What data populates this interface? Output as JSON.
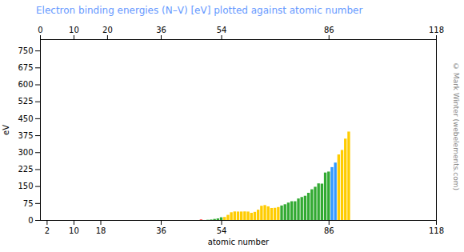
{
  "chart_data": {
    "type": "bar",
    "title": "Electron binding energies (N–V) [eV] plotted against atomic number",
    "xlabel": "atomic number",
    "ylabel": "eV",
    "annotations": [
      "© Mark Winter (webelements.com)"
    ],
    "x": [
      48,
      49,
      50,
      51,
      52,
      53,
      54,
      55,
      56,
      57,
      58,
      59,
      60,
      61,
      62,
      63,
      64,
      65,
      66,
      67,
      68,
      69,
      70,
      71,
      72,
      73,
      74,
      75,
      76,
      77,
      78,
      79,
      80,
      81,
      82,
      83,
      84,
      85,
      86,
      87,
      88,
      89,
      90,
      91,
      92
    ],
    "values": [
      2.0,
      0.1,
      1.1,
      2.1,
      4.7,
      7.0,
      12.1,
      13.4,
      22.7,
      34.3,
      37.8,
      37.4,
      37.5,
      38.0,
      37.4,
      31.8,
      36.0,
      45.6,
      62.9,
      66.0,
      60.3,
      53.2,
      54.0,
      57.3,
      64.2,
      69.7,
      77.0,
      83.0,
      83.0,
      95.2,
      101.7,
      107.2,
      120.3,
      136.0,
      147.0,
      162.0,
      161.0,
      210.0,
      214.4,
      234.0,
      254.0,
      290.0,
      310.0,
      360.0,
      391.3
    ],
    "colors": [
      "#ff0000",
      "#33aa33",
      "#33aa33",
      "#33aa33",
      "#33aa33",
      "#33aa33",
      "#33aa33",
      "#ffcc00",
      "#ffcc00",
      "#ffcc00",
      "#ffcc00",
      "#ffcc00",
      "#ffcc00",
      "#ffcc00",
      "#ffcc00",
      "#ffcc00",
      "#ffcc00",
      "#ffcc00",
      "#ffcc00",
      "#ffcc00",
      "#ffcc00",
      "#ffcc00",
      "#ffcc00",
      "#ffcc00",
      "#33aa33",
      "#33aa33",
      "#33aa33",
      "#33aa33",
      "#33aa33",
      "#33aa33",
      "#33aa33",
      "#33aa33",
      "#33aa33",
      "#33aa33",
      "#33aa33",
      "#33aa33",
      "#33aa33",
      "#33aa33",
      "#33aa33",
      "#3399ff",
      "#3399ff",
      "#ffcc00",
      "#ffcc00",
      "#ffcc00",
      "#ffcc00"
    ],
    "xlim": [
      0,
      118
    ],
    "xticks": [
      2,
      10,
      18,
      36,
      54,
      86,
      118
    ],
    "x2ticks": [
      0,
      10,
      20,
      36,
      54,
      86,
      118
    ],
    "ylim": [
      0,
      800
    ],
    "yticks": [
      0,
      75,
      150,
      225,
      300,
      375,
      450,
      525,
      600,
      675,
      750
    ]
  }
}
